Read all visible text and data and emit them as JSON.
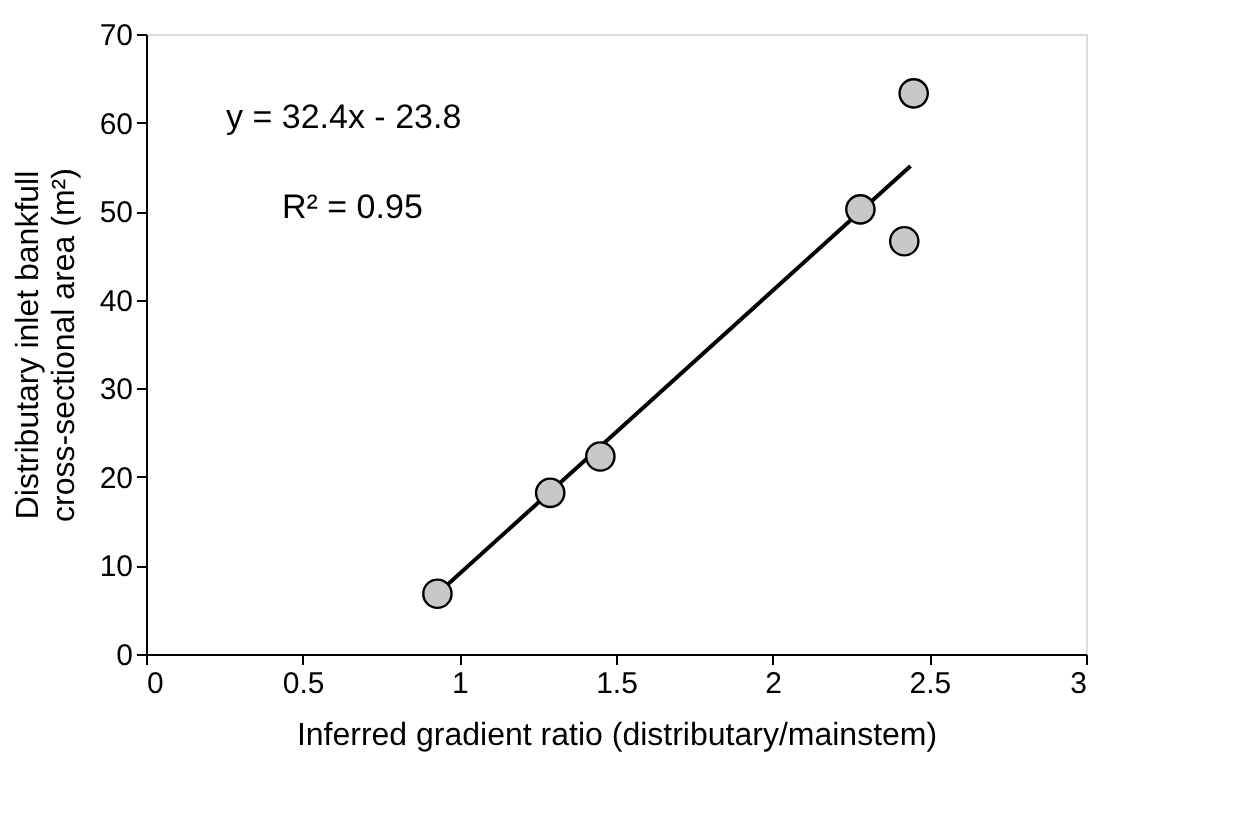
{
  "chart_data": {
    "type": "scatter",
    "xlabel": "Inferred gradient ratio (distributary/mainstem)",
    "ylabel": "Distributary inlet bankfull cross-sectional area (m²)",
    "xlim": [
      0,
      3
    ],
    "ylim": [
      0,
      70
    ],
    "xticks": [
      0,
      0.5,
      1,
      1.5,
      2,
      2.5,
      3
    ],
    "yticks": [
      0,
      10,
      20,
      30,
      40,
      50,
      60,
      70
    ],
    "grid": false,
    "marker": "circle",
    "annotations": [
      "y = 32.4x - 23.8",
      "R² = 0.95"
    ],
    "series": [
      {
        "color": "#c8c8c8",
        "x": [
          0.93,
          1.29,
          1.45,
          2.28,
          2.42,
          2.45
        ],
        "values": [
          6.8,
          18.2,
          22.3,
          50.2,
          46.6,
          63.3
        ]
      },
      {
        "type": "line",
        "color": "#000000",
        "line_style": "solid",
        "marker": "none",
        "x": [
          0.93,
          2.44
        ],
        "values": [
          6.8,
          55.1
        ]
      }
    ]
  }
}
